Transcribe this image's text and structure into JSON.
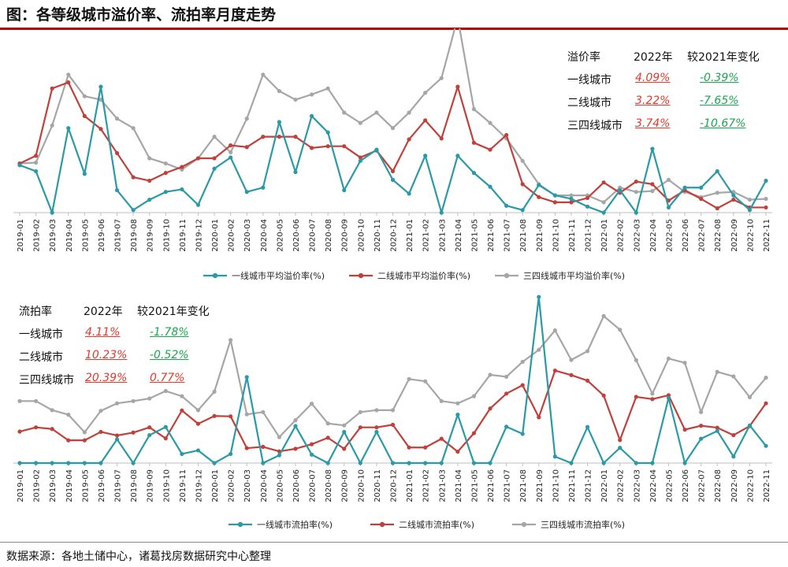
{
  "title": "图：各等级城市溢价率、流拍率月度走势",
  "source": "数据来源：各地土储中心，诸葛找房数据研究中心整理",
  "colors": {
    "tier1": "#2a9aa6",
    "tier2": "#c0413b",
    "tier3": "#a6a6a6",
    "red_text": "#e23a2b",
    "green_text": "#1aa84e"
  },
  "months": [
    "2019-01",
    "2019-02",
    "2019-03",
    "2019-04",
    "2019-05",
    "2019-06",
    "2019-07",
    "2019-08",
    "2019-09",
    "2019-10",
    "2019-11",
    "2019-12",
    "2020-01",
    "2020-02",
    "2020-03",
    "2020-04",
    "2020-05",
    "2020-06",
    "2020-07",
    "2020-08",
    "2020-09",
    "2020-10",
    "2020-11",
    "2020-12",
    "2021-01",
    "2021-02",
    "2021-03",
    "2021-04",
    "2021-05",
    "2021-06",
    "2021-07",
    "2021-08",
    "2021-09",
    "2021-10",
    "2021-11",
    "2021-12",
    "2022-01",
    "2022-02",
    "2022-03",
    "2022-04",
    "2022-05",
    "2022-06",
    "2022-07",
    "2022-08",
    "2022-09",
    "2022-10",
    "2022-11"
  ],
  "premium_table": {
    "header": [
      "溢价率",
      "2022年",
      "较2021年变化"
    ],
    "rows": [
      {
        "city": "一线城市",
        "v2022": "4.09%",
        "change": "-0.39%",
        "change_color": "green"
      },
      {
        "city": "二线城市",
        "v2022": "3.22%",
        "change": "-7.65%",
        "change_color": "green"
      },
      {
        "city": "三四线城市",
        "v2022": "3.74%",
        "change": "-10.67%",
        "change_color": "green"
      }
    ]
  },
  "failed_table": {
    "header": [
      "流拍率",
      "2022年",
      "较2021年变化"
    ],
    "rows": [
      {
        "city": "一线城市",
        "v2022": "4.11%",
        "change": "-1.78%",
        "change_color": "green"
      },
      {
        "city": "二线城市",
        "v2022": "10.23%",
        "change": "-0.52%",
        "change_color": "green"
      },
      {
        "city": "三四线城市",
        "v2022": "20.39%",
        "change": "0.77%",
        "change_color": "red"
      }
    ]
  },
  "chart_data": [
    {
      "type": "line",
      "ylim": [
        0,
        20
      ],
      "series": [
        {
          "name": "一线城市平均溢价率(%)",
          "color": "#2a9aa6",
          "values": [
            5.5,
            4.8,
            0,
            9.8,
            4.5,
            14.6,
            2.6,
            0.3,
            1.5,
            2.4,
            2.7,
            0.9,
            5.1,
            6.4,
            2.4,
            2.9,
            10.5,
            4.7,
            11.2,
            9.3,
            2.6,
            6.0,
            7.3,
            3.8,
            2.2,
            6.6,
            0,
            6.6,
            4.6,
            3.0,
            0.8,
            0.3,
            3.2,
            2.0,
            1.6,
            0.7,
            0,
            2.6,
            0,
            7.4,
            0.6,
            2.9,
            2.9,
            4.8,
            2.0,
            0.3,
            3.7
          ]
        },
        {
          "name": "二线城市平均溢价率(%)",
          "color": "#c0413b",
          "values": [
            5.7,
            6.6,
            14.4,
            15.1,
            11.2,
            9.7,
            6.9,
            4.1,
            3.7,
            4.6,
            5.3,
            6.3,
            6.3,
            7.8,
            7.6,
            8.8,
            8.8,
            8.8,
            7.5,
            7.7,
            7.7,
            6.4,
            7.2,
            4.8,
            8.5,
            10.7,
            8.6,
            14.6,
            8.1,
            7.3,
            9.0,
            3.3,
            1.8,
            1.2,
            1.2,
            1.7,
            3.5,
            2.3,
            3.6,
            3.3,
            1.4,
            2.6,
            1.6,
            0.5,
            1.5,
            0.6,
            0.6
          ]
        },
        {
          "name": "三四线城市平均溢价率(%)",
          "color": "#a6a6a6",
          "values": [
            5.7,
            5.8,
            10.1,
            16.0,
            13.5,
            13.1,
            10.9,
            9.8,
            6.3,
            5.7,
            5.0,
            6.3,
            8.8,
            7.0,
            10.9,
            16.0,
            14.1,
            13.1,
            13.7,
            14.4,
            11.6,
            10.4,
            11.6,
            9.8,
            11.6,
            13.9,
            15.6,
            22.6,
            12.0,
            10.4,
            8.6,
            6.0,
            3.3,
            2.0,
            2.0,
            2.0,
            1.2,
            2.9,
            2.4,
            2.5,
            3.8,
            2.4,
            1.8,
            2.3,
            2.4,
            1.5,
            1.6
          ]
        }
      ]
    },
    {
      "type": "line",
      "ylim": [
        0,
        50
      ],
      "series": [
        {
          "name": "一线城市流拍率(%)",
          "color": "#2a9aa6",
          "values": [
            0,
            0,
            0,
            0,
            0,
            0,
            7.3,
            0,
            8.6,
            11.1,
            2.8,
            3.9,
            0,
            2.8,
            26.5,
            0,
            2.4,
            11.4,
            2.6,
            0,
            9.6,
            0,
            9.6,
            0,
            0,
            0,
            0,
            14.9,
            0,
            0,
            11.2,
            9.0,
            51.2,
            2.0,
            0,
            11.1,
            0,
            4.7,
            0,
            0,
            20.1,
            0,
            7.5,
            9.9,
            2.0,
            11.6,
            5.3
          ]
        },
        {
          "name": "二线城市流拍率(%)",
          "color": "#c0413b",
          "values": [
            9.7,
            11.0,
            10.5,
            7.0,
            7.0,
            9.6,
            8.5,
            9.4,
            11.0,
            7.6,
            16.2,
            12.1,
            14.5,
            14.4,
            4.6,
            5.0,
            3.6,
            4.4,
            5.8,
            7.8,
            4.4,
            11.0,
            11.0,
            11.8,
            4.8,
            4.8,
            7.5,
            3.5,
            9.2,
            16.8,
            21.4,
            24.0,
            14.1,
            28.5,
            27.1,
            25.4,
            20.8,
            7.1,
            20.4,
            19.7,
            20.9,
            10.3,
            11.5,
            10.9,
            8.6,
            11.4,
            18.4
          ]
        },
        {
          "name": "三四线城市流拍率(%)",
          "color": "#a6a6a6",
          "values": [
            19.1,
            19.1,
            16.3,
            14.9,
            9.5,
            16.1,
            18.4,
            19.1,
            19.9,
            22.2,
            20.6,
            16.3,
            22.0,
            37.9,
            15.0,
            15.7,
            8.0,
            13.2,
            18.3,
            12.2,
            11.6,
            15.7,
            16.3,
            16.3,
            25.9,
            25.2,
            19.1,
            18.4,
            20.6,
            27.2,
            26.6,
            31.2,
            34.9,
            40.9,
            31.8,
            34.5,
            45.3,
            41.1,
            31.7,
            21.4,
            32.2,
            30.9,
            15.7,
            28.1,
            26.7,
            20.3,
            26.3
          ]
        }
      ]
    }
  ]
}
